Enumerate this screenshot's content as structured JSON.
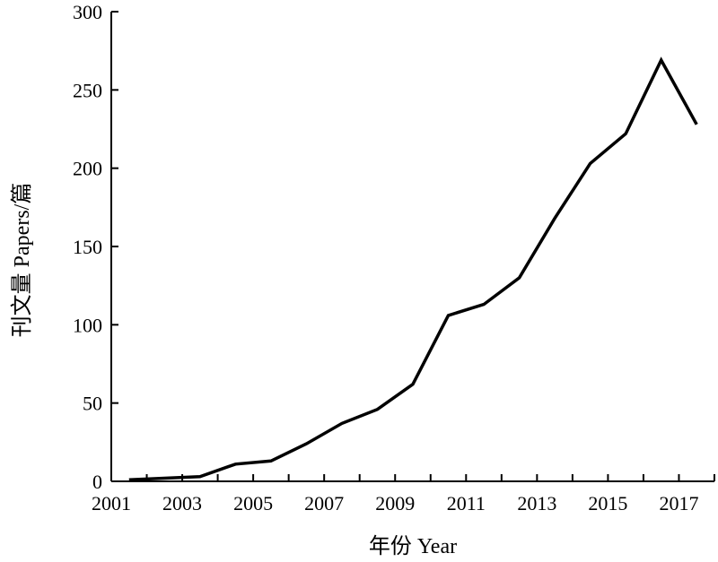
{
  "chart_data": {
    "type": "line",
    "x": [
      2001,
      2002,
      2003,
      2004,
      2005,
      2006,
      2007,
      2008,
      2009,
      2010,
      2011,
      2012,
      2013,
      2014,
      2015,
      2016,
      2017
    ],
    "series": [
      {
        "values": [
          1,
          2,
          3,
          11,
          13,
          24,
          37,
          46,
          62,
          106,
          113,
          130,
          168,
          203,
          222,
          269,
          228
        ]
      }
    ],
    "xlabel": "年份 Year",
    "ylabel": "刊文量 Papers/篇",
    "xlim": [
      2001,
      2018
    ],
    "ylim": [
      0,
      300
    ],
    "xticks": [
      "2001",
      "2003",
      "2005",
      "2007",
      "2009",
      "2011",
      "2013",
      "2015",
      "2017"
    ],
    "yticks": [
      "0",
      "50",
      "100",
      "150",
      "200",
      "250",
      "300"
    ],
    "grid": false,
    "line_color": "#000000"
  }
}
